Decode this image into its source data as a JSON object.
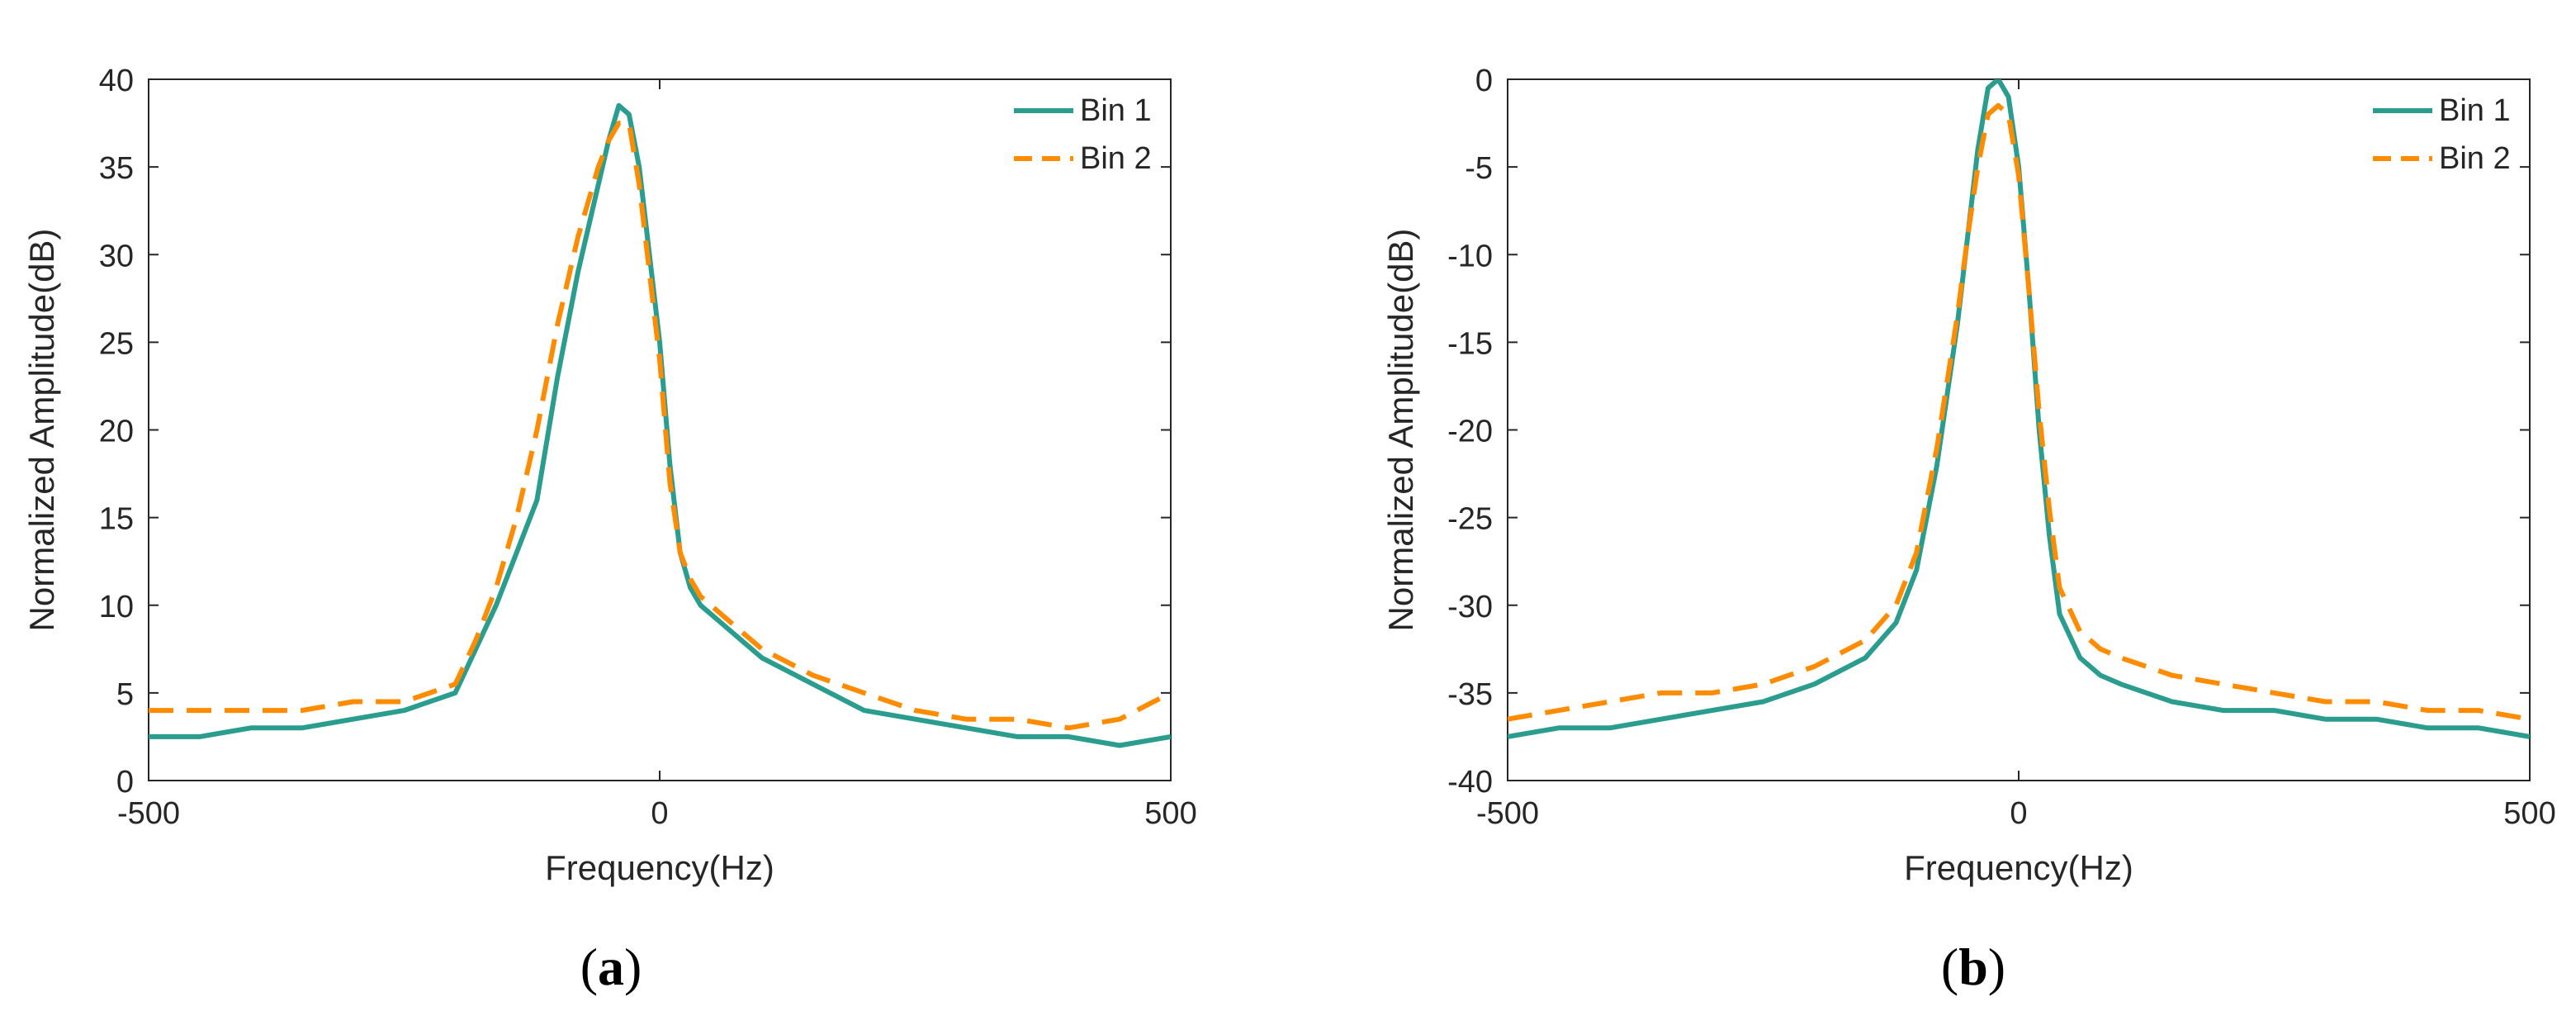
{
  "chart_data": [
    {
      "type": "line",
      "panel_label": "(a)",
      "panel_letter": "a",
      "xlabel": "Frequency(Hz)",
      "ylabel": "Normalized Amplitude(dB)",
      "xlim": [
        -500,
        500
      ],
      "ylim": [
        0,
        40
      ],
      "xticks": [
        -500,
        0,
        500
      ],
      "yticks": [
        0,
        5,
        10,
        15,
        20,
        25,
        30,
        35,
        40
      ],
      "legend_position": "top-right",
      "series_colors": [
        "#2a9d8f",
        "#ff8c00"
      ],
      "x": [
        -500,
        -450,
        -400,
        -350,
        -300,
        -250,
        -200,
        -180,
        -160,
        -140,
        -120,
        -100,
        -80,
        -60,
        -50,
        -40,
        -30,
        -20,
        -10,
        0,
        10,
        20,
        30,
        40,
        60,
        80,
        100,
        150,
        200,
        250,
        300,
        350,
        400,
        450,
        500
      ],
      "series": [
        {
          "name": "Bin 1",
          "style": "solid",
          "values": [
            2.5,
            2.5,
            3.0,
            3.0,
            3.5,
            4.0,
            5.0,
            7.5,
            10.0,
            13.0,
            16.0,
            23.0,
            29.0,
            34.0,
            36.5,
            38.5,
            38.0,
            35.0,
            30.0,
            25.0,
            18.0,
            13.0,
            11.0,
            10.0,
            9.0,
            8.0,
            7.0,
            5.5,
            4.0,
            3.5,
            3.0,
            2.5,
            2.5,
            2.0,
            2.5
          ]
        },
        {
          "name": "Bin 2",
          "style": "dashed",
          "values": [
            4.0,
            4.0,
            4.0,
            4.0,
            4.5,
            4.5,
            5.5,
            8.0,
            11.0,
            15.0,
            20.0,
            26.0,
            31.0,
            35.0,
            36.5,
            37.5,
            37.5,
            34.0,
            29.0,
            24.0,
            17.0,
            13.0,
            11.5,
            10.5,
            9.5,
            8.5,
            7.5,
            6.0,
            5.0,
            4.0,
            3.5,
            3.5,
            3.0,
            3.5,
            5.0
          ]
        }
      ]
    },
    {
      "type": "line",
      "panel_label": "(b)",
      "panel_letter": "b",
      "xlabel": "Frequency(Hz)",
      "ylabel": "Normalized Amplitude(dB)",
      "xlim": [
        -500,
        500
      ],
      "ylim": [
        -40,
        0
      ],
      "xticks": [
        -500,
        0,
        500
      ],
      "yticks": [
        -40,
        -35,
        -30,
        -25,
        -20,
        -15,
        -10,
        -5,
        0
      ],
      "legend_position": "top-right",
      "series_colors": [
        "#2a9d8f",
        "#ff8c00"
      ],
      "x": [
        -500,
        -450,
        -400,
        -350,
        -300,
        -250,
        -200,
        -150,
        -120,
        -100,
        -80,
        -60,
        -50,
        -40,
        -30,
        -20,
        -10,
        0,
        10,
        20,
        30,
        40,
        60,
        80,
        100,
        150,
        200,
        250,
        300,
        350,
        400,
        450,
        500
      ],
      "series": [
        {
          "name": "Bin 1",
          "style": "solid",
          "values": [
            -37.5,
            -37.0,
            -37.0,
            -36.5,
            -36.0,
            -35.5,
            -34.5,
            -33.0,
            -31.0,
            -28.0,
            -22.0,
            -14.0,
            -9.0,
            -4.0,
            -0.5,
            0.0,
            -1.0,
            -5.0,
            -12.0,
            -20.0,
            -26.0,
            -30.5,
            -33.0,
            -34.0,
            -34.5,
            -35.5,
            -36.0,
            -36.0,
            -36.5,
            -36.5,
            -37.0,
            -37.0,
            -37.5
          ]
        },
        {
          "name": "Bin 2",
          "style": "dashed",
          "values": [
            -36.5,
            -36.0,
            -35.5,
            -35.0,
            -35.0,
            -34.5,
            -33.5,
            -32.0,
            -30.0,
            -27.0,
            -21.0,
            -13.5,
            -9.0,
            -5.0,
            -2.0,
            -1.5,
            -2.0,
            -5.5,
            -12.0,
            -19.0,
            -24.5,
            -29.0,
            -31.5,
            -32.5,
            -33.0,
            -34.0,
            -34.5,
            -35.0,
            -35.5,
            -35.5,
            -36.0,
            -36.0,
            -36.5
          ]
        }
      ]
    }
  ]
}
